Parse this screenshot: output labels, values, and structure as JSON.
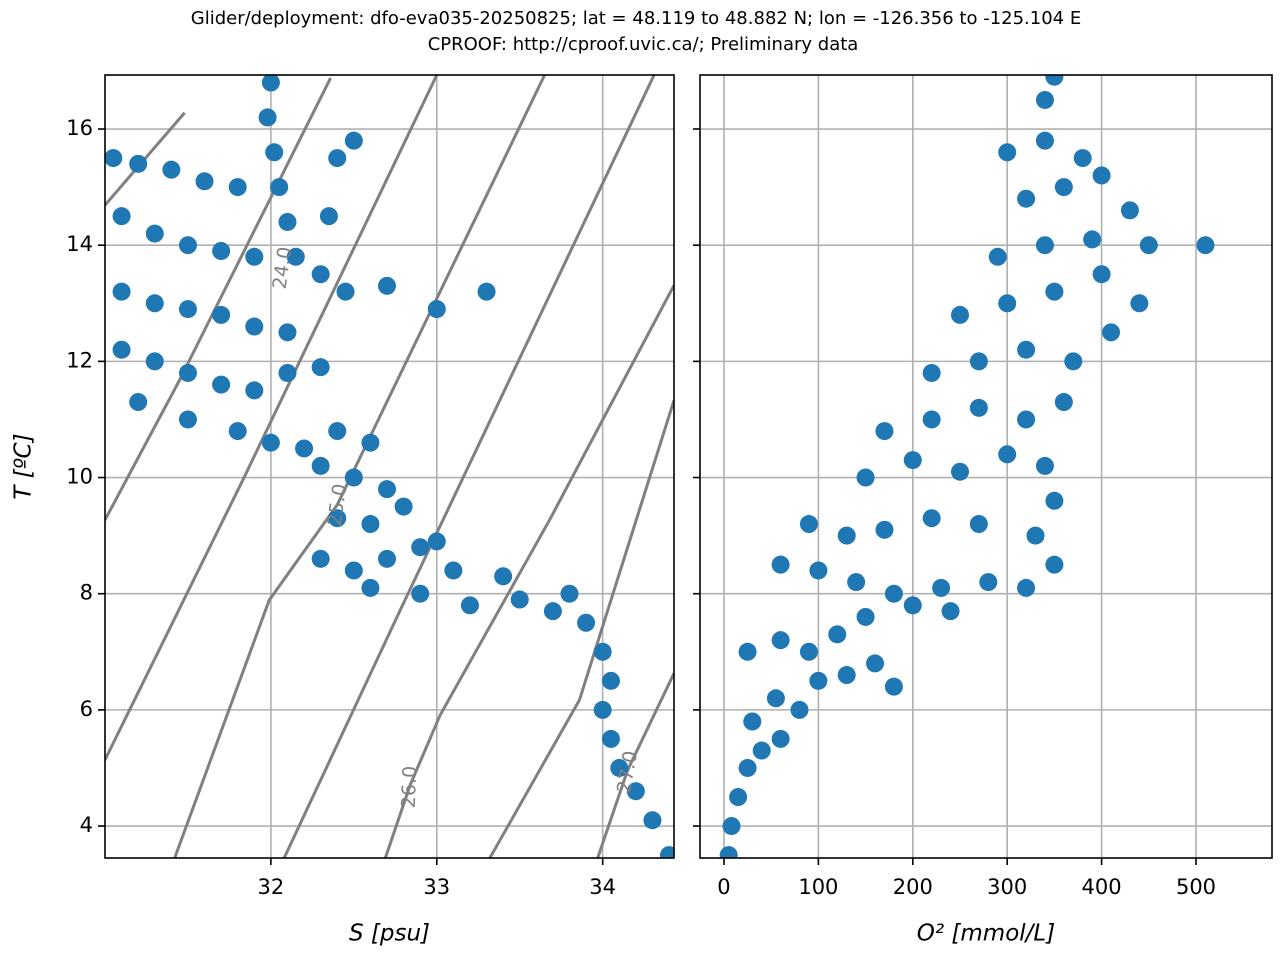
{
  "suptitle": [
    "Glider/deployment: dfo-eva035-20250825; lat = 48.119 to 48.882 N; lon = -126.356 to -125.104 E",
    "CPROOF: http://cproof.uvic.ca/; Preliminary data"
  ],
  "chart_data": [
    {
      "type": "scatter",
      "xlabel": "S [psu]",
      "ylabel": "T [ºC]",
      "color": "#1f77b4",
      "grid": true,
      "xlim": [
        31.0,
        34.43
      ],
      "ylim": [
        3.45,
        16.93
      ],
      "xticks": [
        32,
        33,
        34
      ],
      "yticks": [
        4,
        6,
        8,
        10,
        12,
        14,
        16
      ],
      "show_ytick_labels": true,
      "x": [
        31.05,
        31.2,
        31.4,
        31.6,
        31.8,
        31.1,
        31.3,
        31.5,
        31.7,
        31.9,
        31.1,
        31.3,
        31.5,
        31.7,
        31.9,
        32.1,
        31.1,
        31.3,
        31.5,
        31.7,
        31.9,
        32.1,
        32.3,
        31.2,
        31.5,
        31.8,
        32.0,
        32.2,
        32.4,
        32.6,
        32.0,
        31.98,
        32.02,
        32.05,
        32.1,
        32.15,
        32.3,
        32.35,
        32.4,
        32.5,
        32.45,
        32.7,
        33.0,
        33.3,
        32.3,
        32.5,
        32.7,
        32.4,
        32.6,
        32.8,
        32.3,
        32.5,
        32.7,
        32.9,
        33.0,
        32.6,
        32.9,
        33.2,
        33.1,
        33.4,
        33.5,
        33.7,
        33.8,
        33.9,
        34.0,
        34.05,
        34.0,
        34.05,
        34.1,
        34.2,
        34.3,
        34.4
      ],
      "values": [
        15.5,
        15.4,
        15.3,
        15.1,
        15.0,
        14.5,
        14.2,
        14.0,
        13.9,
        13.8,
        13.2,
        13.0,
        12.9,
        12.8,
        12.6,
        12.5,
        12.2,
        12.0,
        11.8,
        11.6,
        11.5,
        11.8,
        11.9,
        11.3,
        11.0,
        10.8,
        10.6,
        10.5,
        10.8,
        10.6,
        16.8,
        16.2,
        15.6,
        15.0,
        14.4,
        13.8,
        13.5,
        14.5,
        15.5,
        15.8,
        13.2,
        13.3,
        12.9,
        13.2,
        10.2,
        10.0,
        9.8,
        9.3,
        9.2,
        9.5,
        8.6,
        8.4,
        8.6,
        8.8,
        8.9,
        8.1,
        8.0,
        7.8,
        8.4,
        8.3,
        7.9,
        7.7,
        8.0,
        7.5,
        7.0,
        6.5,
        6.0,
        5.5,
        5.0,
        4.6,
        4.1,
        3.5
      ],
      "contours": [
        {
          "level": null,
          "color": "#808080",
          "x": [
            31.0,
            31.48
          ],
          "y": [
            14.69,
            16.28
          ]
        },
        {
          "level": {
            "value": 24,
            "label": "24.0"
          },
          "color": "#808080",
          "x": [
            31.0,
            31.45,
            32.36
          ],
          "y": [
            9.27,
            11.68,
            16.88
          ]
        },
        {
          "level": null,
          "color": "#808080",
          "x": [
            31.0,
            31.84,
            33.0
          ],
          "y": [
            5.14,
            10.01,
            16.93
          ]
        },
        {
          "level": {
            "value": 25,
            "label": "25.0"
          },
          "color": "#808080",
          "x": [
            31.42,
            31.99,
            32.4,
            33.65
          ],
          "y": [
            3.45,
            7.89,
            9.53,
            16.93
          ]
        },
        {
          "level": null,
          "color": "#808080",
          "x": [
            32.08,
            32.78,
            34.31
          ],
          "y": [
            3.45,
            7.72,
            16.93
          ]
        },
        {
          "level": {
            "value": 26,
            "label": "26.0"
          },
          "color": "#808080",
          "x": [
            32.69,
            32.84,
            33.02,
            33.68,
            34.43
          ],
          "y": [
            3.45,
            4.71,
            5.91,
            9.27,
            13.31
          ]
        },
        {
          "level": null,
          "color": "#808080",
          "x": [
            33.32,
            33.86,
            34.43
          ],
          "y": [
            3.45,
            6.17,
            11.33
          ]
        },
        {
          "level": {
            "value": 27,
            "label": "27.0"
          },
          "color": "#808080",
          "x": [
            33.97,
            34.15,
            34.43
          ],
          "y": [
            3.45,
            4.96,
            6.63
          ]
        }
      ]
    },
    {
      "type": "scatter",
      "xlabel": "O² [mmol/L]",
      "color": "#1f77b4",
      "grid": true,
      "xlim": [
        -25.4,
        580.5
      ],
      "ylim": [
        3.45,
        16.93
      ],
      "xticks": [
        0,
        100,
        200,
        300,
        400,
        500
      ],
      "yticks": [
        4,
        6,
        8,
        10,
        12,
        14,
        16
      ],
      "show_ytick_labels": false,
      "x": [
        5,
        8,
        15,
        25,
        40,
        60,
        30,
        55,
        80,
        100,
        130,
        160,
        180,
        25,
        60,
        90,
        120,
        150,
        200,
        240,
        60,
        100,
        140,
        180,
        230,
        280,
        320,
        350,
        90,
        130,
        170,
        220,
        270,
        330,
        350,
        150,
        200,
        250,
        300,
        340,
        170,
        220,
        270,
        320,
        360,
        220,
        270,
        320,
        370,
        410,
        250,
        300,
        350,
        400,
        440,
        290,
        340,
        390,
        450,
        510,
        320,
        360,
        400,
        340,
        380,
        340,
        350,
        300,
        430
      ],
      "values": [
        3.5,
        4.0,
        4.5,
        5.0,
        5.3,
        5.5,
        5.8,
        6.2,
        6.0,
        6.5,
        6.6,
        6.8,
        6.4,
        7.0,
        7.2,
        7.0,
        7.3,
        7.6,
        7.8,
        7.7,
        8.5,
        8.4,
        8.2,
        8.0,
        8.1,
        8.2,
        8.1,
        8.5,
        9.2,
        9.0,
        9.1,
        9.3,
        9.2,
        9.0,
        9.6,
        10.0,
        10.3,
        10.1,
        10.4,
        10.2,
        10.8,
        11.0,
        11.2,
        11.0,
        11.3,
        11.8,
        12.0,
        12.2,
        12.0,
        12.5,
        12.8,
        13.0,
        13.2,
        13.5,
        13.0,
        13.8,
        14.0,
        14.1,
        14.0,
        14.0,
        14.8,
        15.0,
        15.2,
        15.8,
        15.5,
        16.5,
        16.9,
        15.6,
        14.6
      ]
    }
  ]
}
